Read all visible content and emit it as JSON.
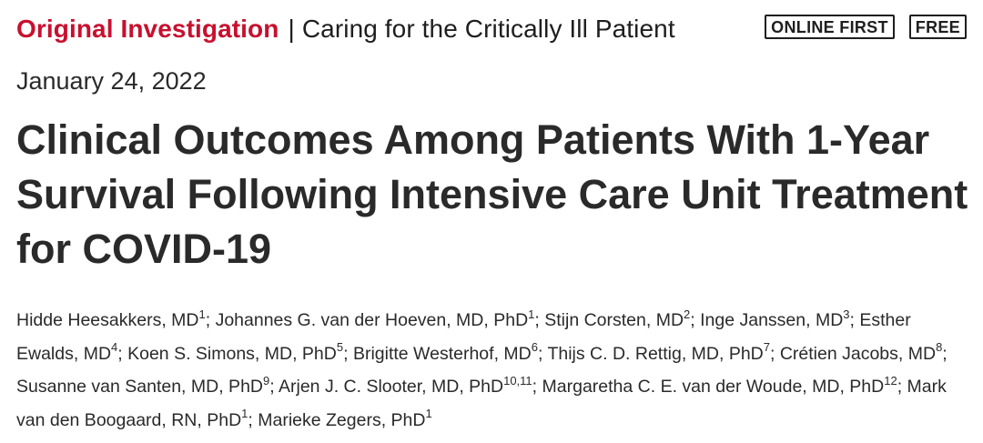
{
  "header": {
    "article_type": "Original Investigation",
    "separator": "|",
    "topic": "Caring for the Critically Ill Patient",
    "badges": [
      "ONLINE FIRST",
      "FREE"
    ]
  },
  "date": "January 24, 2022",
  "title": "Clinical Outcomes Among Patients With 1-Year Survival Following Intensive Care Unit Treatment for COVID-19",
  "authors": [
    {
      "name": "Hidde Heesakkers, MD",
      "aff": "1",
      "sep": "; "
    },
    {
      "name": "Johannes G. van der Hoeven, MD, PhD",
      "aff": "1",
      "sep": "; "
    },
    {
      "name": "Stijn Corsten, MD",
      "aff": "2",
      "sep": "; "
    },
    {
      "name": "Inge Janssen, MD",
      "aff": "3",
      "sep": "; "
    },
    {
      "name": "Esther Ewalds, MD",
      "aff": "4",
      "sep": "; "
    },
    {
      "name": "Koen S. Simons, MD, PhD",
      "aff": "5",
      "sep": "; "
    },
    {
      "name": "Brigitte Westerhof, MD",
      "aff": "6",
      "sep": "; "
    },
    {
      "name": "Thijs C. D. Rettig, MD, PhD",
      "aff": "7",
      "sep": "; "
    },
    {
      "name": "Crétien Jacobs, MD",
      "aff": "8",
      "sep": "; "
    },
    {
      "name": "Susanne van Santen, MD, PhD",
      "aff": "9",
      "sep": "; "
    },
    {
      "name": "Arjen J. C. Slooter, MD, PhD",
      "aff": "10,11",
      "sep": "; "
    },
    {
      "name": "Margaretha C. E. van der Woude, MD, PhD",
      "aff": "12",
      "sep": "; "
    },
    {
      "name": "Mark van den Boogaard, RN, PhD",
      "aff": "1",
      "sep": "; "
    },
    {
      "name": "Marieke Zegers, PhD",
      "aff": "1",
      "sep": ""
    }
  ]
}
